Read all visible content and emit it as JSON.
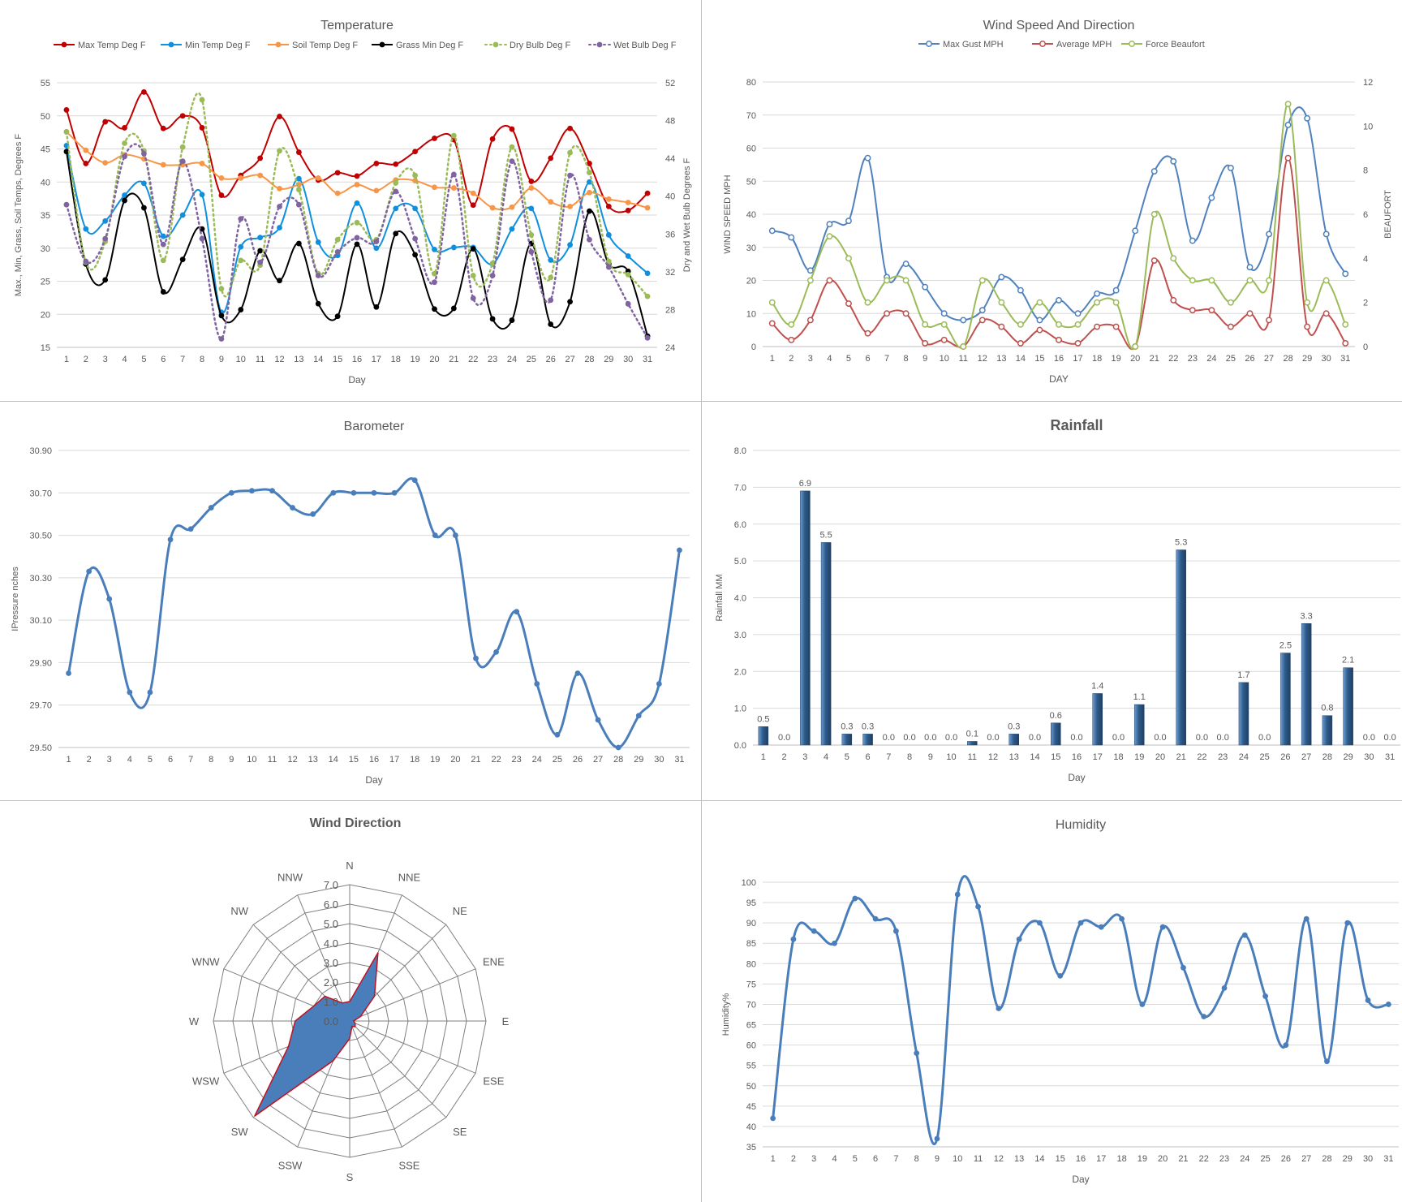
{
  "colors": {
    "max_temp": "#C00000",
    "min_temp": "#0F8FDD",
    "soil_temp": "#F79646",
    "grass_min": "#000000",
    "dry_bulb": "#9BBB59",
    "wet_bulb": "#8064A2",
    "max_gust": "#4F81BD",
    "average_mph": "#C0504D",
    "beaufort": "#9BBB59",
    "baro": "#4A7EBB",
    "rain": "#2E5C8A",
    "wind_fill": "#4A7EBB",
    "wind_edge": "#C0111F",
    "humidity": "#4A7EBB"
  },
  "chart_data": [
    {
      "id": "temperature",
      "type": "line",
      "title": "Temperature",
      "xlabel": "Day",
      "ylabel": "Max., Min, Grass, Soil Temps, Degrees F",
      "y2label": "Dry and Wet Bulb Degrees F",
      "x": [
        "1",
        "2",
        "3",
        "4",
        "5",
        "6",
        "7",
        "8",
        "9",
        "10",
        "11",
        "12",
        "13",
        "14",
        "15",
        "16",
        "17",
        "18",
        "19",
        "20",
        "21",
        "22",
        "23",
        "24",
        "25",
        "26",
        "27",
        "28",
        "29",
        "30",
        "31"
      ],
      "ylim": [
        15,
        55
      ],
      "yticks": [
        "15",
        "20",
        "25",
        "30",
        "35",
        "40",
        "45",
        "50",
        "55"
      ],
      "y2lim": [
        24,
        52
      ],
      "y2ticks": [
        "24",
        "28",
        "32",
        "36",
        "40",
        "44",
        "48",
        "52"
      ],
      "legend_position": "top",
      "series": [
        {
          "name": "Max Temp Deg F",
          "axis": "left",
          "dash": false,
          "values": [
            50.9,
            42.8,
            49.1,
            48.2,
            53.6,
            48.1,
            50,
            48.2,
            38,
            41,
            43.6,
            49.9,
            44.5,
            40.3,
            41.4,
            40.9,
            42.8,
            42.7,
            44.6,
            46.6,
            46.4,
            36.5,
            46.5,
            48,
            40.1,
            43.6,
            48.1,
            42.8,
            36.3,
            35.7,
            38.3
          ]
        },
        {
          "name": "Min Temp Deg F",
          "axis": "left",
          "dash": false,
          "values": [
            45.5,
            32.9,
            34.1,
            38,
            39.8,
            31.8,
            35,
            38.1,
            20.3,
            30.2,
            31.6,
            33.1,
            40.5,
            30.9,
            28.9,
            36.8,
            30,
            36,
            36,
            29.8,
            30.1,
            30.1,
            27.6,
            32.9,
            36,
            28.2,
            30.5,
            40,
            32,
            28.8,
            26.2
          ]
        },
        {
          "name": "Soil Temp Deg F",
          "axis": "left",
          "dash": false,
          "values": [
            47.6,
            44.8,
            42.9,
            44.1,
            43.5,
            42.6,
            42.6,
            42.8,
            40.6,
            40.6,
            41,
            39,
            39.6,
            40.6,
            38.3,
            39.6,
            38.7,
            40.3,
            40.2,
            39.2,
            39.1,
            38.3,
            36.1,
            36.2,
            39.1,
            37,
            36.3,
            38.4,
            37.4,
            36.9,
            36.1
          ]
        },
        {
          "name": "Grass Min Deg F",
          "axis": "left",
          "dash": false,
          "values": [
            44.6,
            27.6,
            25.2,
            37.2,
            36.1,
            23.4,
            28.3,
            32.9,
            19.8,
            20.7,
            29.6,
            25.1,
            30.7,
            21.6,
            19.7,
            30.6,
            21.1,
            32.2,
            29,
            20.8,
            20.9,
            29.9,
            19.3,
            19.1,
            30.7,
            18.5,
            21.9,
            35.6,
            27.6,
            26.5,
            16.7
          ]
        },
        {
          "name": "Dry Bulb Deg F",
          "axis": "right",
          "dash": true,
          "values": [
            46.8,
            33,
            35.2,
            45.6,
            44.8,
            33.2,
            45.2,
            50.2,
            30.2,
            33.2,
            32.7,
            44.8,
            40.7,
            31.8,
            35.4,
            37.2,
            35.4,
            41.4,
            42.2,
            31.8,
            46.4,
            31.6,
            32.9,
            45.2,
            35.9,
            31.4,
            44.6,
            42.5,
            33.1,
            31.7,
            29.4
          ]
        },
        {
          "name": "Wet Bulb Deg F",
          "axis": "right",
          "dash": true,
          "values": [
            39.1,
            33.1,
            35.5,
            44.2,
            44.5,
            34.9,
            43.7,
            35.5,
            24.9,
            37.6,
            33,
            38.9,
            39.1,
            31.6,
            34.1,
            35.6,
            35.2,
            40.5,
            35.5,
            30.9,
            42.3,
            29.2,
            31.6,
            43.7,
            34.1,
            29,
            42.2,
            35.4,
            32.5,
            28.6,
            25
          ]
        }
      ]
    },
    {
      "id": "wind_speed",
      "type": "line",
      "title": "Wind Speed And Direction",
      "xlabel": "DAY",
      "ylabel": "WIND SPEED MPH",
      "y2label": "BEAUFORT",
      "x": [
        "1",
        "2",
        "3",
        "4",
        "5",
        "6",
        "7",
        "8",
        "9",
        "10",
        "11",
        "12",
        "13",
        "14",
        "15",
        "16",
        "17",
        "18",
        "19",
        "20",
        "21",
        "22",
        "23",
        "24",
        "25",
        "26",
        "27",
        "28",
        "29",
        "30",
        "31"
      ],
      "ylim": [
        0,
        80
      ],
      "yticks": [
        "0",
        "10",
        "20",
        "30",
        "40",
        "50",
        "60",
        "70",
        "80"
      ],
      "y2lim": [
        0,
        12
      ],
      "y2ticks": [
        "0",
        "2",
        "4",
        "6",
        "8",
        "10",
        "12"
      ],
      "legend_position": "top",
      "series": [
        {
          "name": "Max Gust MPH",
          "axis": "left",
          "values": [
            35,
            33,
            23,
            37,
            38,
            57,
            21,
            25,
            18,
            10,
            8,
            11,
            21,
            17,
            8,
            14,
            10,
            16,
            17,
            35,
            53,
            56,
            32,
            45,
            54,
            24,
            34,
            67,
            69,
            34,
            22
          ]
        },
        {
          "name": "Average MPH",
          "axis": "left",
          "values": [
            7,
            2,
            8,
            20,
            13,
            4,
            10,
            10,
            1,
            2,
            0,
            8,
            6,
            1,
            5,
            2,
            1,
            6,
            6,
            0,
            26,
            14,
            11,
            11,
            6,
            10,
            8,
            57,
            6,
            10,
            1
          ]
        },
        {
          "name": "Force Beaufort",
          "axis": "right",
          "values": [
            2,
            1,
            3,
            5,
            4,
            2,
            3,
            3,
            1,
            1,
            0,
            3,
            2,
            1,
            2,
            1,
            1,
            2,
            2,
            0,
            6,
            4,
            3,
            3,
            2,
            3,
            3,
            11,
            2,
            3,
            1
          ]
        }
      ]
    },
    {
      "id": "barometer",
      "type": "line",
      "title": "Barometer",
      "xlabel": "Day",
      "ylabel": "IPressure nches",
      "x": [
        "1",
        "2",
        "3",
        "4",
        "5",
        "6",
        "7",
        "8",
        "9",
        "10",
        "11",
        "12",
        "13",
        "14",
        "15",
        "16",
        "17",
        "18",
        "19",
        "20",
        "21",
        "22",
        "23",
        "24",
        "25",
        "26",
        "27",
        "28",
        "29",
        "30",
        "31"
      ],
      "ylim": [
        29.5,
        30.9
      ],
      "yticks": [
        "29.50",
        "29.70",
        "29.90",
        "30.10",
        "30.30",
        "30.50",
        "30.70",
        "30.90"
      ],
      "values": [
        29.85,
        30.33,
        30.2,
        29.76,
        29.76,
        30.48,
        30.53,
        30.63,
        30.7,
        30.71,
        30.71,
        30.63,
        30.6,
        30.7,
        30.7,
        30.7,
        30.7,
        30.76,
        30.5,
        30.5,
        29.92,
        29.95,
        30.14,
        29.8,
        29.56,
        29.85,
        29.63,
        29.5,
        29.65,
        29.8,
        30.43
      ]
    },
    {
      "id": "rainfall",
      "type": "bar",
      "title": "Rainfall",
      "xlabel": "Day",
      "ylabel": "Rainfall MM",
      "categories": [
        "1",
        "2",
        "3",
        "4",
        "5",
        "6",
        "7",
        "8",
        "9",
        "10",
        "11",
        "12",
        "13",
        "14",
        "15",
        "16",
        "17",
        "18",
        "19",
        "20",
        "21",
        "22",
        "23",
        "24",
        "25",
        "26",
        "27",
        "28",
        "29",
        "30",
        "31"
      ],
      "ylim": [
        0,
        8
      ],
      "yticks": [
        "0.0",
        "1.0",
        "2.0",
        "3.0",
        "4.0",
        "5.0",
        "6.0",
        "7.0",
        "8.0"
      ],
      "values": [
        0.5,
        0,
        6.9,
        5.5,
        0.3,
        0.3,
        0,
        0,
        0,
        0,
        0.1,
        0,
        0.3,
        0,
        0.6,
        0,
        1.4,
        0,
        1.1,
        0,
        5.3,
        0,
        0,
        1.7,
        0,
        2.5,
        3.3,
        0.8,
        2.1,
        0,
        0
      ],
      "data_labels": [
        "0.5",
        "0.0",
        "6.9",
        "5.5",
        "0.3",
        "0.3",
        "0.0",
        "0.0",
        "0.0",
        "0.0",
        "0.1",
        "0.0",
        "0.3",
        "0.0",
        "0.6",
        "0.0",
        "1.4",
        "0.0",
        "1.1",
        "0.0",
        "5.3",
        "0.0",
        "0.0",
        "1.7",
        "0.0",
        "2.5",
        "3.3",
        "0.8",
        "2.1",
        "0.0",
        "0.0"
      ]
    },
    {
      "id": "wind_direction",
      "type": "radar",
      "title": "Wind Direction",
      "categories": [
        "N",
        "NNE",
        "NE",
        "ENE",
        "E",
        "ESE",
        "SE",
        "SSE",
        "S",
        "SSW",
        "SW",
        "WSW",
        "W",
        "WNW",
        "NW",
        "NNW"
      ],
      "rlim": [
        0,
        7
      ],
      "rticks": [
        "0.0",
        "1.0",
        "2.0",
        "3.0",
        "4.0",
        "5.0",
        "6.0",
        "7.0"
      ],
      "values": [
        1,
        3.8,
        1.8,
        0.6,
        0.2,
        0.3,
        0.4,
        0.3,
        0.9,
        2.2,
        6.9,
        3.4,
        2.8,
        2,
        1.8,
        1
      ]
    },
    {
      "id": "humidity",
      "type": "line",
      "title": "Humidity",
      "xlabel": "Day",
      "ylabel": "Humidity%",
      "x": [
        "1",
        "2",
        "3",
        "4",
        "5",
        "6",
        "7",
        "8",
        "9",
        "10",
        "11",
        "12",
        "13",
        "14",
        "15",
        "16",
        "17",
        "18",
        "19",
        "20",
        "21",
        "22",
        "23",
        "24",
        "25",
        "26",
        "27",
        "28",
        "29",
        "30",
        "31"
      ],
      "ylim": [
        35,
        100
      ],
      "yticks": [
        "35",
        "40",
        "45",
        "50",
        "55",
        "60",
        "65",
        "70",
        "75",
        "80",
        "85",
        "90",
        "95",
        "100"
      ],
      "values": [
        42,
        86,
        88,
        85,
        96,
        91,
        88,
        58,
        37,
        97,
        94,
        69,
        86,
        90,
        77,
        90,
        89,
        91,
        70,
        89,
        79,
        67,
        74,
        87,
        72,
        60,
        91,
        56,
        90,
        71,
        70
      ]
    }
  ]
}
